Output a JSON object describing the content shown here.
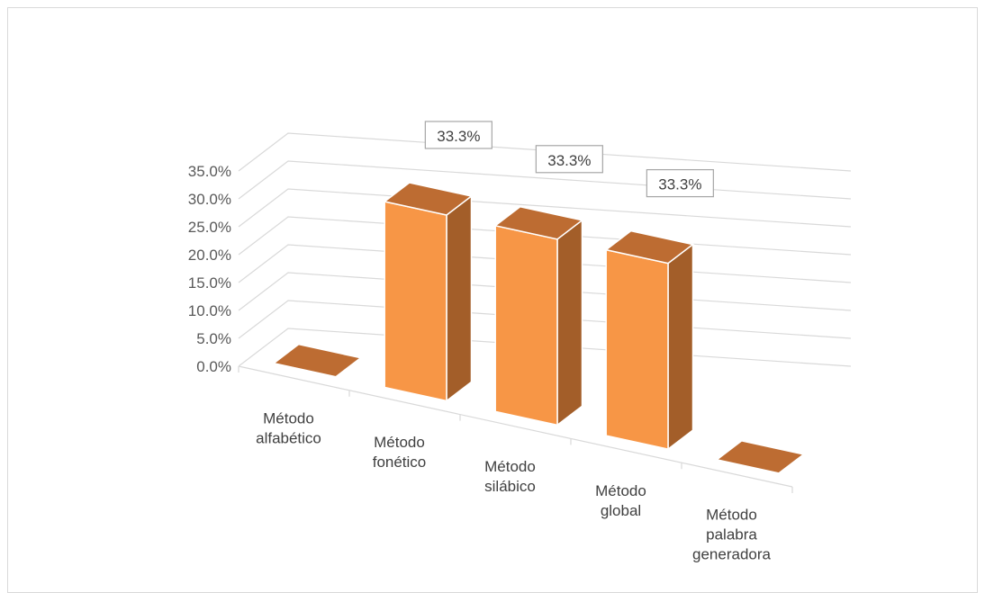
{
  "chart_data": {
    "type": "bar",
    "categories": [
      [
        "Método",
        "alfabético"
      ],
      [
        "Método",
        "fonético"
      ],
      [
        "Método",
        "silábico"
      ],
      [
        "Método",
        "global"
      ],
      [
        "Método",
        "palabra",
        "generadora"
      ]
    ],
    "values": [
      0.0,
      33.3,
      33.3,
      33.3,
      0.0
    ],
    "value_labels": [
      "",
      "33.3%",
      "33.3%",
      "33.3%",
      ""
    ],
    "y_ticks": [
      "0.0%",
      "5.0%",
      "10.0%",
      "15.0%",
      "20.0%",
      "25.0%",
      "30.0%",
      "35.0%"
    ],
    "ylim": [
      0,
      35
    ],
    "grid": true,
    "legend": "none",
    "colors": {
      "bar_front": "#F79646",
      "bar_top": "#BD6C32",
      "bar_side": "#A35E29",
      "grid": "#D9D9D9",
      "frame": "#D9D9D9"
    }
  }
}
